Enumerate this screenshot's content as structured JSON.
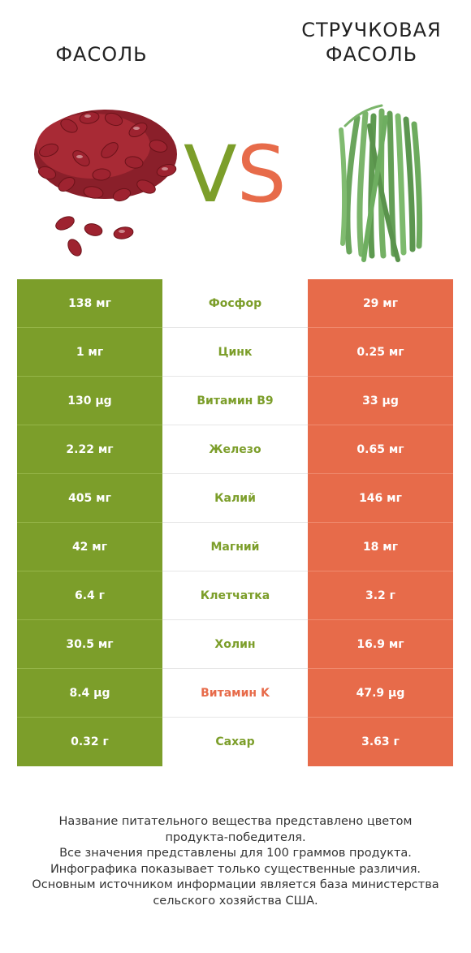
{
  "left_food": {
    "name": "Фасоль",
    "color": "#7c9e2a"
  },
  "right_food": {
    "name": "Стручковая фасоль",
    "color": "#e76b4a"
  },
  "vs": {
    "v": "V",
    "s": "S"
  },
  "rows": [
    {
      "nutrient": "Фосфор",
      "left": "138 мг",
      "right": "29 мг",
      "winner": "left"
    },
    {
      "nutrient": "Цинк",
      "left": "1 мг",
      "right": "0.25 мг",
      "winner": "left"
    },
    {
      "nutrient": "Витамин B9",
      "left": "130 µg",
      "right": "33 µg",
      "winner": "left"
    },
    {
      "nutrient": "Железо",
      "left": "2.22 мг",
      "right": "0.65 мг",
      "winner": "left"
    },
    {
      "nutrient": "Калий",
      "left": "405 мг",
      "right": "146 мг",
      "winner": "left"
    },
    {
      "nutrient": "Магний",
      "left": "42 мг",
      "right": "18 мг",
      "winner": "left"
    },
    {
      "nutrient": "Клетчатка",
      "left": "6.4 г",
      "right": "3.2 г",
      "winner": "left"
    },
    {
      "nutrient": "Холин",
      "left": "30.5 мг",
      "right": "16.9 мг",
      "winner": "left"
    },
    {
      "nutrient": "Витамин K",
      "left": "8.4 µg",
      "right": "47.9 µg",
      "winner": "right"
    },
    {
      "nutrient": "Сахар",
      "left": "0.32 г",
      "right": "3.63 г",
      "winner": "left"
    }
  ],
  "footer": {
    "line1": "Название питательного вещества представлено цветом",
    "line2": "продукта-победителя.",
    "line3": "Все значения представлены для 100 граммов продукта.",
    "line4": "Инфографика показывает только существенные различия.",
    "line5": "Основным источником информации является база министерства",
    "line6": "сельского хозяйства США."
  }
}
